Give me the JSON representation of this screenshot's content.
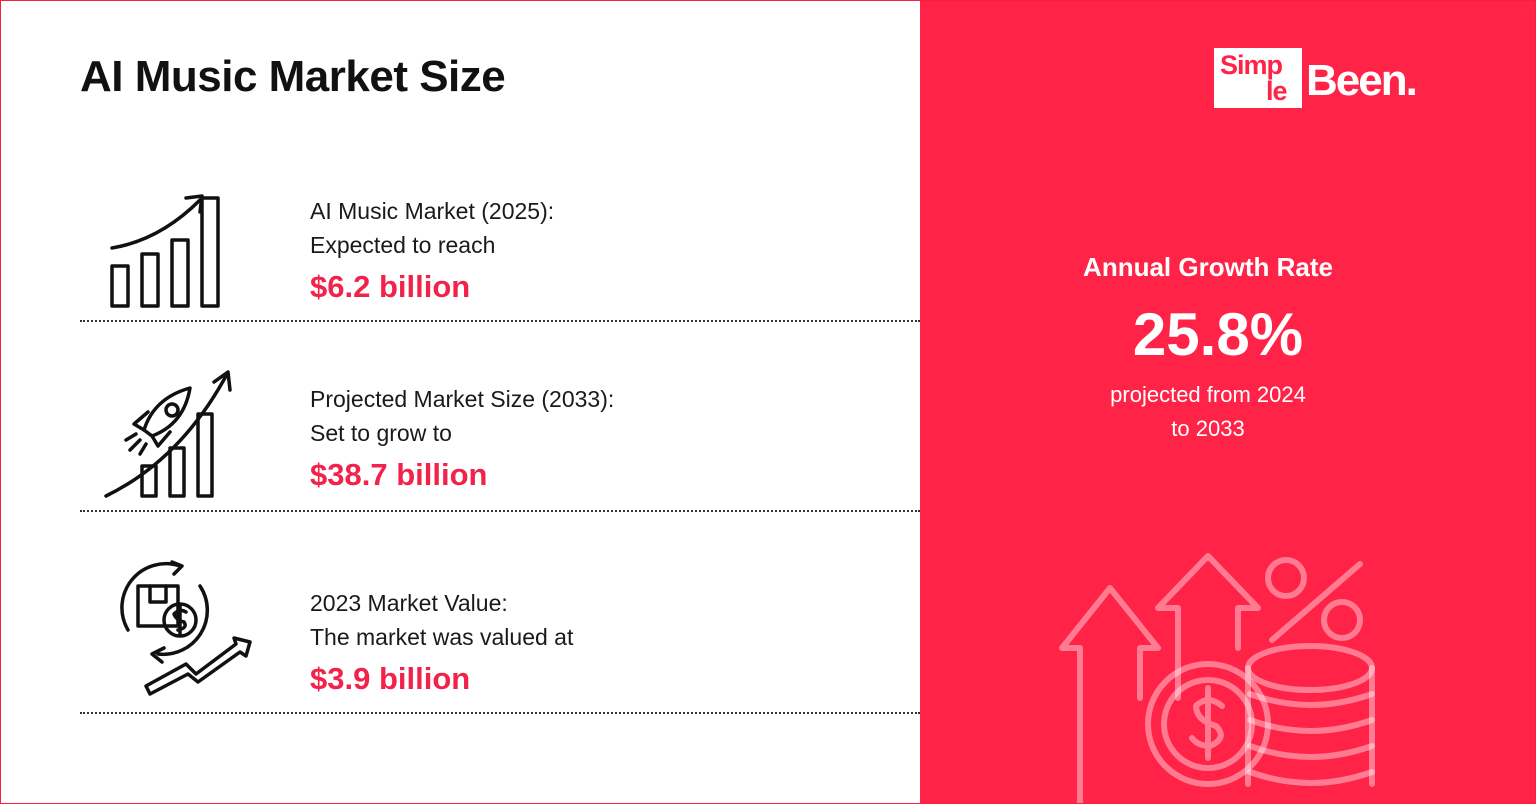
{
  "title": "AI Music Market Size",
  "stats": [
    {
      "label_1": "AI Music Market (2025):",
      "label_2": "Expected to reach",
      "value": "$6.2 billion",
      "icon": "bar-chart-growth-icon"
    },
    {
      "label_1": "Projected Market Size (2033):",
      "label_2": "Set to grow to",
      "value": "$38.7 billion",
      "icon": "rocket-growth-icon"
    },
    {
      "label_1": "2023 Market Value:",
      "label_2": "The market was valued at",
      "value": "$3.9 billion",
      "icon": "money-cycle-icon"
    }
  ],
  "logo": {
    "part_1": "Simp",
    "part_2": "le",
    "part_3": "Been."
  },
  "growth": {
    "heading": "Annual Growth Rate",
    "value": "25.8%",
    "line_1": "projected from 2024",
    "line_2": "to 2033"
  },
  "colors": {
    "accent": "#ff2348",
    "value_text": "#f2234a",
    "text": "#111111"
  },
  "decoration_icon": "coins-arrows-percent-icon"
}
